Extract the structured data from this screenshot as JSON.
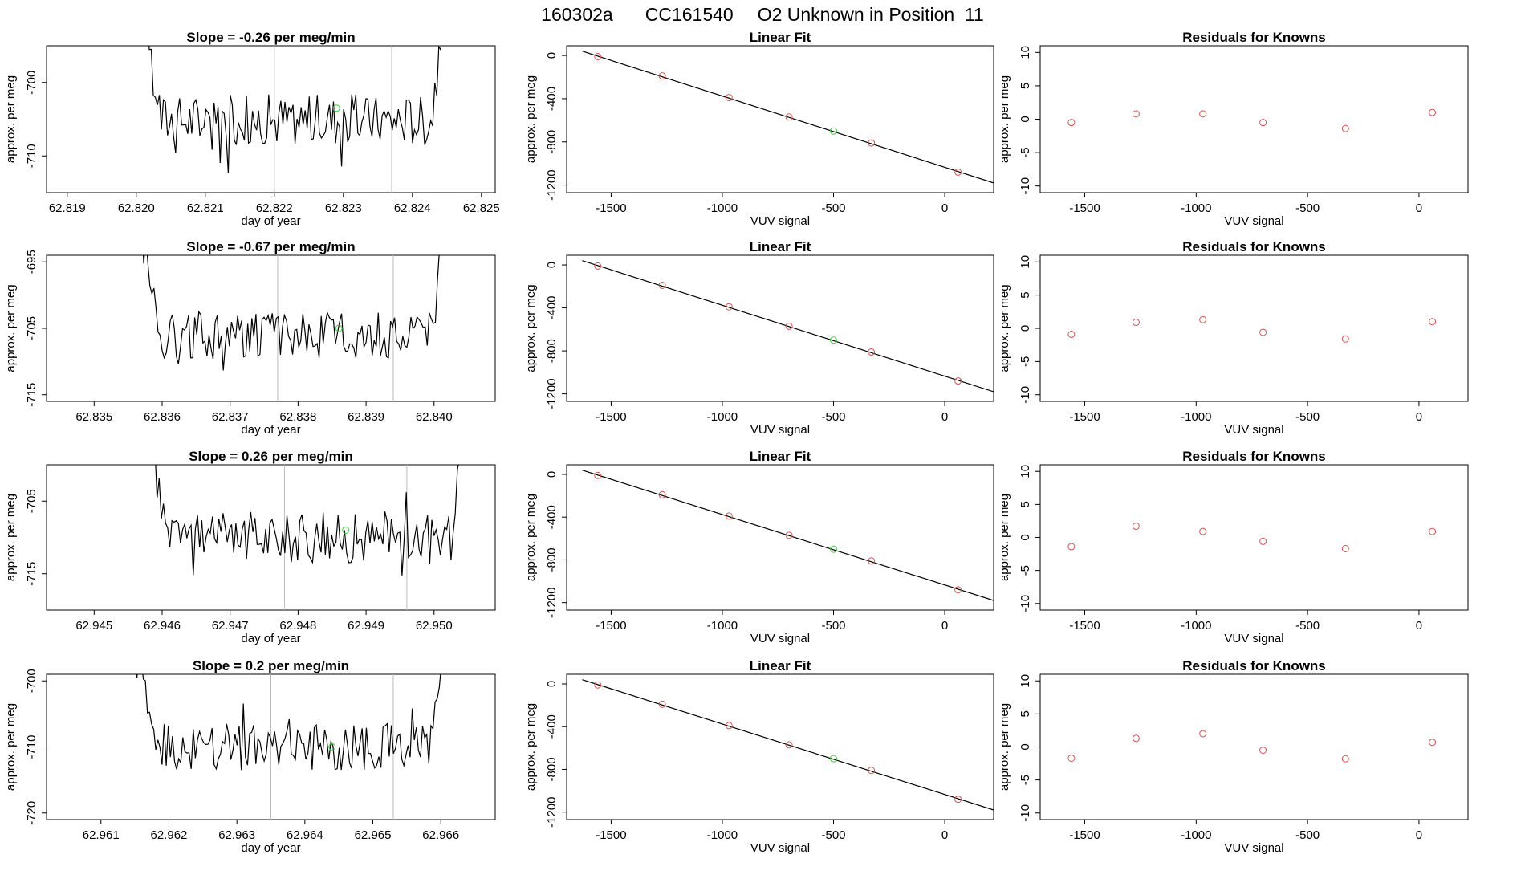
{
  "header": {
    "run_id": "160302a",
    "cylinder": "CC161540",
    "description": "O2 Unknown in Position  11"
  },
  "colors": {
    "trace": "#000000",
    "known_point": "#d9534f",
    "unknown_point": "#3ccc3c",
    "vline": "#bbbbbb",
    "axis": "#000000"
  },
  "chart_data": [
    {
      "type": "line",
      "panel": "time-series",
      "row": 1,
      "title": "Slope =  -0.26  per meg/min",
      "xlabel": "day of year",
      "ylabel": "approx. per meg",
      "xlim": [
        62.8187,
        62.8252
      ],
      "ylim": [
        -715,
        -695
      ],
      "xticks": [
        62.819,
        62.82,
        62.821,
        62.822,
        62.823,
        62.824,
        62.825
      ],
      "xtick_labels": [
        "62.819",
        "62.820",
        "62.821",
        "62.822",
        "62.823",
        "62.824",
        "62.825"
      ],
      "yticks": [
        -700,
        -710
      ],
      "ytick_labels": [
        "-700",
        "-710"
      ],
      "vlines": [
        62.822,
        62.8237
      ],
      "series_range": [
        62.8201,
        62.8245
      ],
      "baseline": -705,
      "unknown_point": {
        "x": 62.8229,
        "y": -703.5
      }
    },
    {
      "type": "scatter",
      "panel": "linear-fit",
      "row": 1,
      "title": "Linear Fit",
      "xlabel": "VUV signal",
      "ylabel": "approx. per meg",
      "xlim": [
        -1700,
        220
      ],
      "ylim": [
        -1270,
        90
      ],
      "xticks": [
        -1500,
        -1000,
        -500,
        0
      ],
      "xtick_labels": [
        "-1500",
        "-1000",
        "-500",
        "0"
      ],
      "yticks": [
        0,
        -400,
        -800,
        -1200
      ],
      "ytick_labels": [
        "0",
        "-400",
        "-800",
        "-1200"
      ],
      "fit_line": {
        "x1": -1630,
        "y1": 40,
        "x2": 220,
        "y2": -1180
      },
      "knowns": [
        {
          "x": -1560,
          "y": -10
        },
        {
          "x": -1270,
          "y": -190
        },
        {
          "x": -970,
          "y": -390
        },
        {
          "x": -700,
          "y": -570
        },
        {
          "x": -330,
          "y": -810
        },
        {
          "x": 60,
          "y": -1080
        }
      ],
      "unknown": {
        "x": -500,
        "y": -700
      }
    },
    {
      "type": "scatter",
      "panel": "residuals",
      "row": 1,
      "title": "Residuals for Knowns",
      "xlabel": "VUV signal",
      "ylabel": "approx. per meg",
      "xlim": [
        -1700,
        220
      ],
      "ylim": [
        -11,
        11
      ],
      "xticks": [
        -1500,
        -1000,
        -500,
        0
      ],
      "xtick_labels": [
        "-1500",
        "-1000",
        "-500",
        "0"
      ],
      "yticks": [
        10,
        5,
        0,
        -5,
        -10
      ],
      "ytick_labels": [
        "10",
        "5",
        "0",
        "-5",
        "-10"
      ],
      "points": [
        {
          "x": -1560,
          "y": -0.5
        },
        {
          "x": -1270,
          "y": 0.8
        },
        {
          "x": -970,
          "y": 0.8
        },
        {
          "x": -700,
          "y": -0.5
        },
        {
          "x": -330,
          "y": -1.4
        },
        {
          "x": 60,
          "y": 1.0
        }
      ]
    },
    {
      "type": "line",
      "panel": "time-series",
      "row": 2,
      "title": "Slope =  -0.67  per meg/min",
      "xlabel": "day of year",
      "ylabel": "approx. per meg",
      "xlim": [
        62.8343,
        62.8409
      ],
      "ylim": [
        -716,
        -694
      ],
      "xticks": [
        62.835,
        62.836,
        62.837,
        62.838,
        62.839,
        62.84
      ],
      "xtick_labels": [
        "62.835",
        "62.836",
        "62.837",
        "62.838",
        "62.839",
        "62.840"
      ],
      "yticks": [
        -695,
        -705,
        -715
      ],
      "ytick_labels": [
        "-695",
        "-705",
        "-715"
      ],
      "vlines": [
        62.8377,
        62.8394
      ],
      "series_range": [
        62.8357,
        62.8402
      ],
      "baseline": -706,
      "unknown_point": {
        "x": 62.8386,
        "y": -705
      }
    },
    {
      "type": "scatter",
      "panel": "linear-fit",
      "row": 2,
      "title": "Linear Fit",
      "xlabel": "VUV signal",
      "ylabel": "approx. per meg",
      "xlim": [
        -1700,
        220
      ],
      "ylim": [
        -1270,
        90
      ],
      "xticks": [
        -1500,
        -1000,
        -500,
        0
      ],
      "xtick_labels": [
        "-1500",
        "-1000",
        "-500",
        "0"
      ],
      "yticks": [
        0,
        -400,
        -800,
        -1200
      ],
      "ytick_labels": [
        "0",
        "-400",
        "-800",
        "-1200"
      ],
      "fit_line": {
        "x1": -1630,
        "y1": 40,
        "x2": 220,
        "y2": -1180
      },
      "knowns": [
        {
          "x": -1560,
          "y": -10
        },
        {
          "x": -1270,
          "y": -190
        },
        {
          "x": -970,
          "y": -390
        },
        {
          "x": -700,
          "y": -570
        },
        {
          "x": -330,
          "y": -810
        },
        {
          "x": 60,
          "y": -1080
        }
      ],
      "unknown": {
        "x": -500,
        "y": -700
      }
    },
    {
      "type": "scatter",
      "panel": "residuals",
      "row": 2,
      "title": "Residuals for Knowns",
      "xlabel": "VUV signal",
      "ylabel": "approx. per meg",
      "xlim": [
        -1700,
        220
      ],
      "ylim": [
        -11,
        11
      ],
      "xticks": [
        -1500,
        -1000,
        -500,
        0
      ],
      "xtick_labels": [
        "-1500",
        "-1000",
        "-500",
        "0"
      ],
      "yticks": [
        10,
        5,
        0,
        -5,
        -10
      ],
      "ytick_labels": [
        "10",
        "5",
        "0",
        "-5",
        "-10"
      ],
      "points": [
        {
          "x": -1560,
          "y": -0.9
        },
        {
          "x": -1270,
          "y": 0.9
        },
        {
          "x": -970,
          "y": 1.3
        },
        {
          "x": -700,
          "y": -0.6
        },
        {
          "x": -330,
          "y": -1.6
        },
        {
          "x": 60,
          "y": 1.0
        }
      ]
    },
    {
      "type": "line",
      "panel": "time-series",
      "row": 3,
      "title": "Slope =  0.26  per meg/min",
      "xlabel": "day of year",
      "ylabel": "approx. per meg",
      "xlim": [
        62.9443,
        62.9509
      ],
      "ylim": [
        -720,
        -700
      ],
      "xticks": [
        62.945,
        62.946,
        62.947,
        62.948,
        62.949,
        62.95
      ],
      "xtick_labels": [
        "62.945",
        "62.946",
        "62.947",
        "62.948",
        "62.949",
        "62.950"
      ],
      "yticks": [
        -705,
        -715
      ],
      "ytick_labels": [
        "-705",
        "-715"
      ],
      "vlines": [
        62.9478,
        62.9496
      ],
      "series_range": [
        62.9458,
        62.9505
      ],
      "baseline": -710,
      "unknown_point": {
        "x": 62.9487,
        "y": -709
      }
    },
    {
      "type": "scatter",
      "panel": "linear-fit",
      "row": 3,
      "title": "Linear Fit",
      "xlabel": "VUV signal",
      "ylabel": "approx. per meg",
      "xlim": [
        -1700,
        220
      ],
      "ylim": [
        -1270,
        90
      ],
      "xticks": [
        -1500,
        -1000,
        -500,
        0
      ],
      "xtick_labels": [
        "-1500",
        "-1000",
        "-500",
        "0"
      ],
      "yticks": [
        0,
        -400,
        -800,
        -1200
      ],
      "ytick_labels": [
        "0",
        "-400",
        "-800",
        "-1200"
      ],
      "fit_line": {
        "x1": -1630,
        "y1": 40,
        "x2": 220,
        "y2": -1180
      },
      "knowns": [
        {
          "x": -1560,
          "y": -10
        },
        {
          "x": -1270,
          "y": -190
        },
        {
          "x": -970,
          "y": -390
        },
        {
          "x": -700,
          "y": -570
        },
        {
          "x": -330,
          "y": -810
        },
        {
          "x": 60,
          "y": -1080
        }
      ],
      "unknown": {
        "x": -500,
        "y": -700
      }
    },
    {
      "type": "scatter",
      "panel": "residuals",
      "row": 3,
      "title": "Residuals for Knowns",
      "xlabel": "VUV signal",
      "ylabel": "approx. per meg",
      "xlim": [
        -1700,
        220
      ],
      "ylim": [
        -11,
        11
      ],
      "xticks": [
        -1500,
        -1000,
        -500,
        0
      ],
      "xtick_labels": [
        "-1500",
        "-1000",
        "-500",
        "0"
      ],
      "yticks": [
        10,
        5,
        0,
        -5,
        -10
      ],
      "ytick_labels": [
        "10",
        "5",
        "0",
        "-5",
        "-10"
      ],
      "points": [
        {
          "x": -1560,
          "y": -1.4
        },
        {
          "x": -1270,
          "y": 1.7
        },
        {
          "x": -970,
          "y": 0.9
        },
        {
          "x": -700,
          "y": -0.6
        },
        {
          "x": -330,
          "y": -1.7
        },
        {
          "x": 60,
          "y": 0.9
        }
      ]
    },
    {
      "type": "line",
      "panel": "time-series",
      "row": 4,
      "title": "Slope =  0.2  per meg/min",
      "xlabel": "day of year",
      "ylabel": "approx. per meg",
      "xlim": [
        62.9602,
        62.9668
      ],
      "ylim": [
        -721,
        -699
      ],
      "xticks": [
        62.961,
        62.962,
        62.963,
        62.964,
        62.965,
        62.966
      ],
      "xtick_labels": [
        "62.961",
        "62.962",
        "62.963",
        "62.964",
        "62.965",
        "62.966"
      ],
      "yticks": [
        -700,
        -710,
        -720
      ],
      "ytick_labels": [
        "-700",
        "-710",
        "-720"
      ],
      "vlines": [
        62.9635,
        62.9653
      ],
      "series_range": [
        62.9615,
        62.9661
      ],
      "baseline": -710,
      "unknown_point": {
        "x": 62.9644,
        "y": -710
      }
    },
    {
      "type": "scatter",
      "panel": "linear-fit",
      "row": 4,
      "title": "Linear Fit",
      "xlabel": "VUV signal",
      "ylabel": "approx. per meg",
      "xlim": [
        -1700,
        220
      ],
      "ylim": [
        -1270,
        90
      ],
      "xticks": [
        -1500,
        -1000,
        -500,
        0
      ],
      "xtick_labels": [
        "-1500",
        "-1000",
        "-500",
        "0"
      ],
      "yticks": [
        0,
        -400,
        -800,
        -1200
      ],
      "ytick_labels": [
        "0",
        "-400",
        "-800",
        "-1200"
      ],
      "fit_line": {
        "x1": -1630,
        "y1": 40,
        "x2": 220,
        "y2": -1180
      },
      "knowns": [
        {
          "x": -1560,
          "y": -10
        },
        {
          "x": -1270,
          "y": -190
        },
        {
          "x": -970,
          "y": -390
        },
        {
          "x": -700,
          "y": -570
        },
        {
          "x": -330,
          "y": -810
        },
        {
          "x": 60,
          "y": -1080
        }
      ],
      "unknown": {
        "x": -500,
        "y": -700
      }
    },
    {
      "type": "scatter",
      "panel": "residuals",
      "row": 4,
      "title": "Residuals for Knowns",
      "xlabel": "VUV signal",
      "ylabel": "approx. per meg",
      "xlim": [
        -1700,
        220
      ],
      "ylim": [
        -11,
        11
      ],
      "xticks": [
        -1500,
        -1000,
        -500,
        0
      ],
      "xtick_labels": [
        "-1500",
        "-1000",
        "-500",
        "0"
      ],
      "yticks": [
        10,
        5,
        0,
        -5,
        -10
      ],
      "ytick_labels": [
        "10",
        "5",
        "0",
        "-5",
        "-10"
      ],
      "points": [
        {
          "x": -1560,
          "y": -1.7
        },
        {
          "x": -1270,
          "y": 1.3
        },
        {
          "x": -970,
          "y": 2.0
        },
        {
          "x": -700,
          "y": -0.5
        },
        {
          "x": -330,
          "y": -1.8
        },
        {
          "x": 60,
          "y": 0.7
        }
      ]
    }
  ]
}
